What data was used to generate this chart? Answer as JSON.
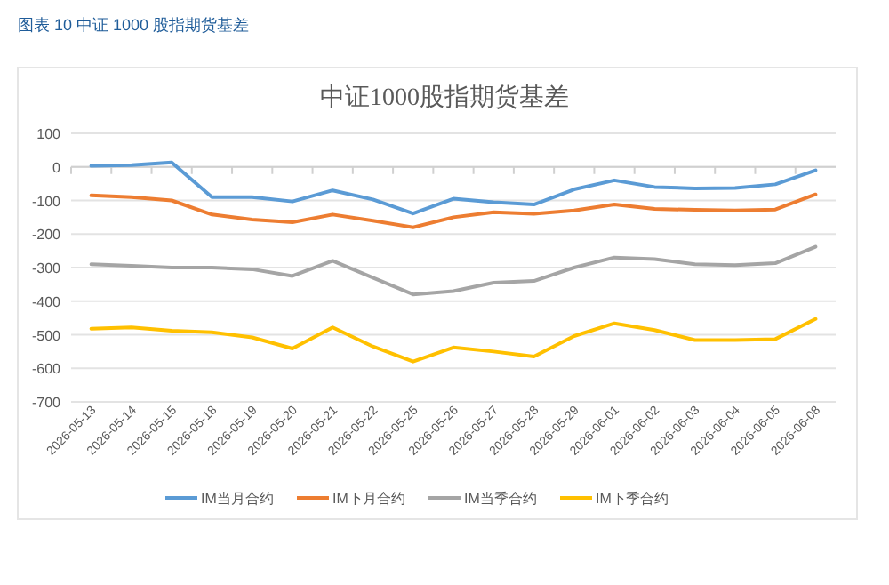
{
  "chart_data": {
    "type": "line",
    "title": "中证1000股指期货基差",
    "annotations": [
      "图表 10  中证 1000 股指期货基差"
    ],
    "categories": [
      "2026-05-13",
      "2026-05-14",
      "2026-05-15",
      "2026-05-18",
      "2026-05-19",
      "2026-05-20",
      "2026-05-21",
      "2026-05-22",
      "2026-05-25",
      "2026-05-26",
      "2026-05-27",
      "2026-05-28",
      "2026-05-29",
      "2026-06-01",
      "2026-06-02",
      "2026-06-03",
      "2026-06-04",
      "2026-06-05",
      "2026-06-08"
    ],
    "series": [
      {
        "name": "IM当月合约",
        "color": "#5b9bd5",
        "values": [
          3,
          5,
          13,
          -90,
          -90,
          -103,
          -70,
          -97,
          -139,
          -95,
          -105,
          -112,
          -67,
          -40,
          -60,
          -64,
          -63,
          -52,
          -10
        ]
      },
      {
        "name": "IM下月合约",
        "color": "#ed7d31",
        "values": [
          -85,
          -90,
          -100,
          -142,
          -157,
          -165,
          -142,
          -160,
          -180,
          -150,
          -135,
          -140,
          -130,
          -112,
          -125,
          -128,
          -130,
          -127,
          -82
        ]
      },
      {
        "name": "IM当季合约",
        "color": "#a5a5a5",
        "values": [
          -290,
          -295,
          -300,
          -300,
          -305,
          -325,
          -280,
          -330,
          -380,
          -370,
          -345,
          -340,
          -300,
          -270,
          -275,
          -290,
          -293,
          -287,
          -238
        ]
      },
      {
        "name": "IM下季合约",
        "color": "#ffc000",
        "values": [
          -482,
          -478,
          -488,
          -493,
          -508,
          -541,
          -478,
          -535,
          -580,
          -538,
          -550,
          -565,
          -504,
          -466,
          -486,
          -516,
          -516,
          -513,
          -453
        ]
      }
    ],
    "ylim": [
      -700,
      100
    ],
    "yticks": [
      -700,
      -600,
      -500,
      -400,
      -300,
      -200,
      -100,
      0,
      100
    ],
    "grid": "y",
    "legend": "bottom"
  }
}
